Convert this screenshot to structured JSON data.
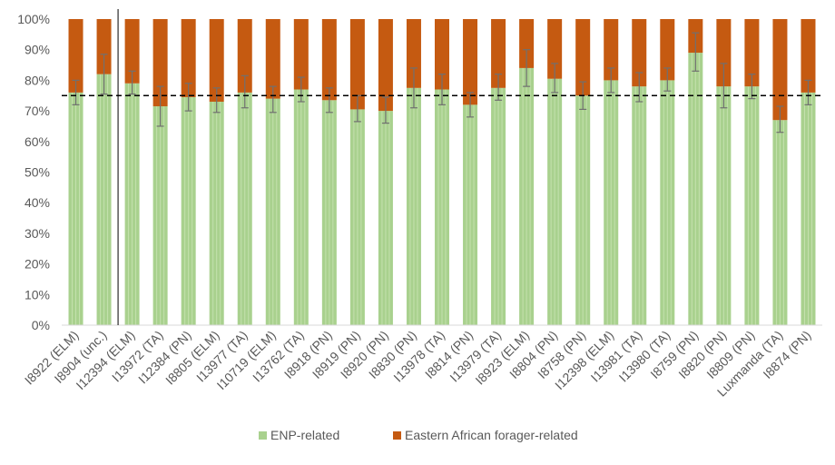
{
  "chart_data": {
    "type": "bar",
    "stacked": true,
    "percent": true,
    "title": "",
    "xlabel": "",
    "ylabel": "",
    "ylim": [
      0,
      100
    ],
    "yticks": [
      "0%",
      "10%",
      "20%",
      "30%",
      "40%",
      "50%",
      "60%",
      "70%",
      "80%",
      "90%",
      "100%"
    ],
    "reference_line": 75,
    "divider_after_index": 1,
    "categories": [
      "I8922 (ELM)",
      "I8904 (unc.)",
      "I12394 (ELM)",
      "I13972 (TA)",
      "I12384 (PN)",
      "I8805 (ELM)",
      "I13977 (TA)",
      "I10719 (ELM)",
      "I13762 (TA)",
      "I8918 (PN)",
      "I8919 (PN)",
      "I8920 (PN)",
      "I8830 (PN)",
      "I13978 (TA)",
      "I8814 (PN)",
      "I13979 (TA)",
      "I8923 (ELM)",
      "I8804 (PN)",
      "I8758 (PN)",
      "I12398 (ELM)",
      "I13981 (TA)",
      "I13980 (TA)",
      "I8759 (PN)",
      "I8820 (PN)",
      "I8809 (PN)",
      "Luxmanda (TA)",
      "I8874 (PN)"
    ],
    "series": [
      {
        "name": "ENP-related",
        "color": "#a9d18e",
        "values": [
          76,
          82,
          79,
          71.5,
          74.5,
          73,
          76,
          74,
          77,
          73.5,
          70.5,
          70,
          77.5,
          77,
          72,
          77.5,
          84,
          80.5,
          75,
          80,
          78,
          80,
          89,
          78,
          78,
          67,
          76
        ]
      },
      {
        "name": "Eastern African forager-related",
        "color": "#c55a11",
        "values": [
          24,
          18,
          21,
          28.5,
          25.5,
          27,
          24,
          26,
          23,
          26.5,
          29.5,
          30,
          22.5,
          23,
          28,
          22.5,
          16,
          19.5,
          25,
          20,
          22,
          20,
          11,
          22,
          22,
          33,
          24
        ]
      }
    ],
    "error_bars": [
      [
        72,
        80
      ],
      [
        75.5,
        88.5
      ],
      [
        75.5,
        83
      ],
      [
        65,
        78
      ],
      [
        70,
        79
      ],
      [
        69.5,
        77.5
      ],
      [
        71,
        81.5
      ],
      [
        69.5,
        78
      ],
      [
        73,
        81
      ],
      [
        69.5,
        77.5
      ],
      [
        66.5,
        75
      ],
      [
        66,
        74.5
      ],
      [
        71,
        84
      ],
      [
        72,
        82
      ],
      [
        68,
        76
      ],
      [
        73.5,
        82
      ],
      [
        78,
        90
      ],
      [
        76,
        85.5
      ],
      [
        70.5,
        79.5
      ],
      [
        76,
        84
      ],
      [
        73,
        82.5
      ],
      [
        76.5,
        84
      ],
      [
        83,
        95.5
      ],
      [
        71,
        85.5
      ],
      [
        74,
        82
      ],
      [
        63,
        71.5
      ],
      [
        72,
        80
      ]
    ],
    "legend": [
      "ENP-related",
      "Eastern African forager-related"
    ],
    "legend_position": "bottom"
  }
}
